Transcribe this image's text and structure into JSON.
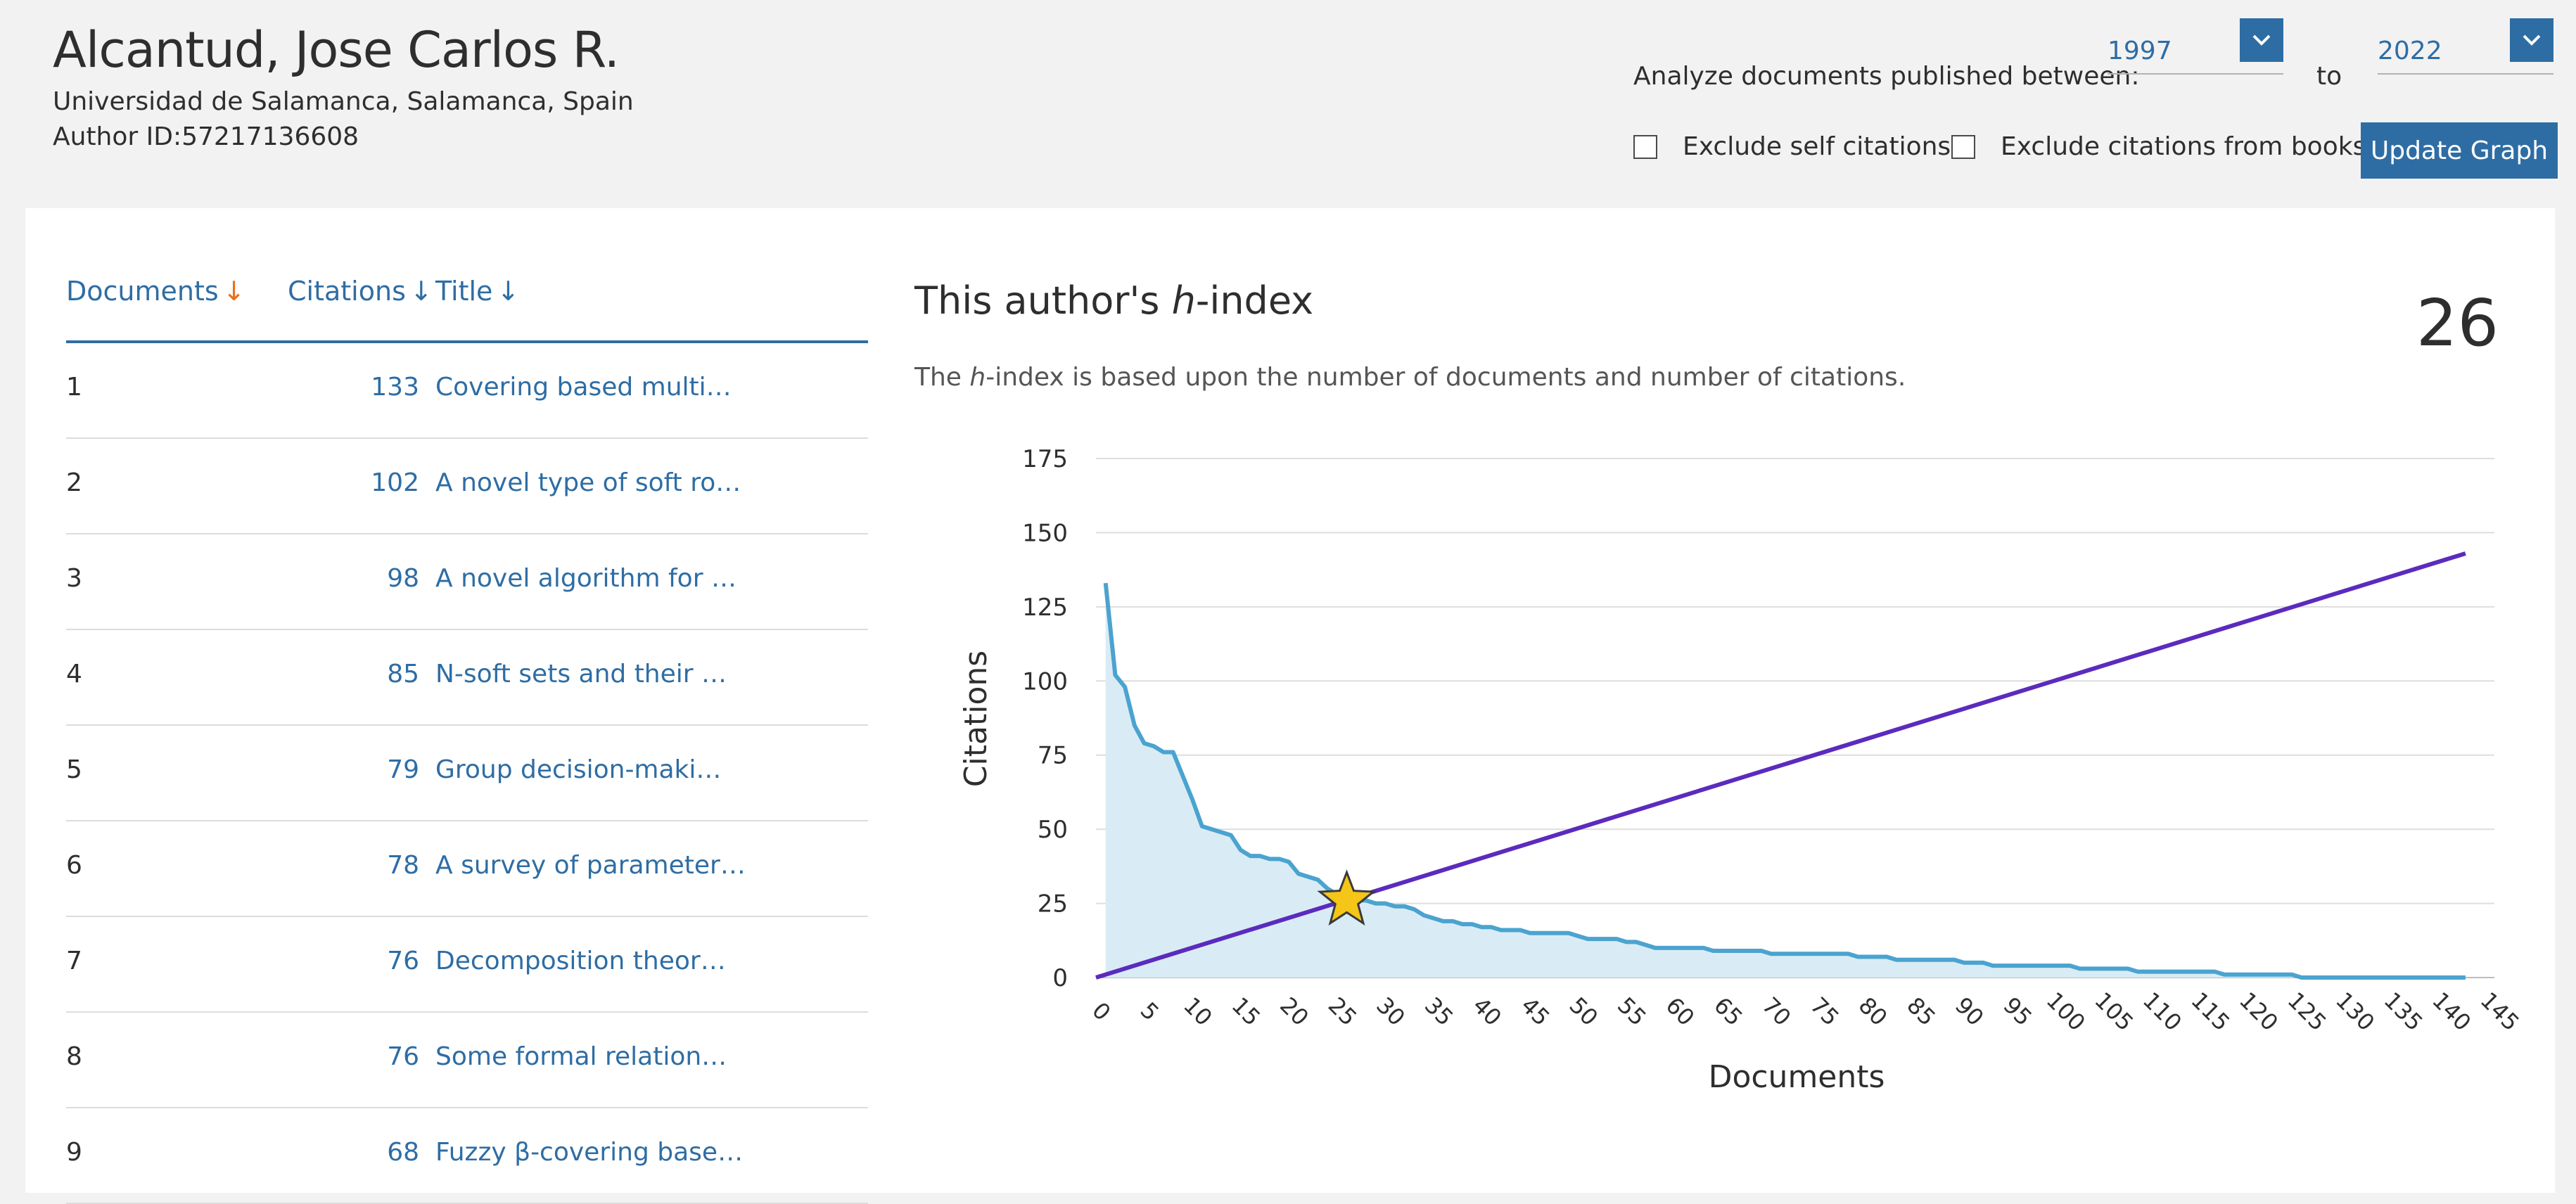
{
  "author": {
    "name": "Alcantud, Jose Carlos R.",
    "affiliation": "Universidad de Salamanca, Salamanca, Spain",
    "author_id_label": "Author ID:",
    "author_id": "57217136608"
  },
  "filters": {
    "analyze_label": "Analyze documents published between:",
    "start_year": "1997",
    "to_label": "to",
    "end_year": "2022",
    "exclude_self_label": "Exclude self citations",
    "exclude_self_checked": false,
    "exclude_books_label": "Exclude citations from books",
    "exclude_books_checked": false,
    "update_button": "Update Graph"
  },
  "table": {
    "columns": [
      "Documents",
      "Citations",
      "Title"
    ],
    "rows": [
      {
        "num": "1",
        "cites": "133",
        "title": "Covering based multi…"
      },
      {
        "num": "2",
        "cites": "102",
        "title": "A novel type of soft ro…"
      },
      {
        "num": "3",
        "cites": "98",
        "title": "A novel algorithm for …"
      },
      {
        "num": "4",
        "cites": "85",
        "title": "N-soft sets and their …"
      },
      {
        "num": "5",
        "cites": "79",
        "title": "Group decision-maki…"
      },
      {
        "num": "6",
        "cites": "78",
        "title": "A survey of parameter…"
      },
      {
        "num": "7",
        "cites": "76",
        "title": "Decomposition theor…"
      },
      {
        "num": "8",
        "cites": "76",
        "title": "Some formal relation…"
      },
      {
        "num": "9",
        "cites": "68",
        "title": "Fuzzy β-covering base…"
      }
    ]
  },
  "hindex": {
    "title_pre": "This author's ",
    "title_h": "h",
    "title_post": "-index",
    "value": "26",
    "desc_pre": "The ",
    "desc_h": "h",
    "desc_post": "-index is based upon the number of documents and number of citations."
  },
  "chart_data": {
    "type": "area",
    "xlabel": "Documents",
    "ylabel": "Citations",
    "xlim": [
      0,
      145
    ],
    "ylim": [
      0,
      175
    ],
    "xticks": [
      0,
      5,
      10,
      15,
      20,
      25,
      30,
      35,
      40,
      45,
      50,
      55,
      60,
      65,
      70,
      75,
      80,
      85,
      90,
      95,
      100,
      105,
      110,
      115,
      120,
      125,
      130,
      135,
      140,
      145
    ],
    "yticks": [
      0,
      25,
      50,
      75,
      100,
      125,
      150,
      175
    ],
    "grid": true,
    "colors": {
      "citations": "#4ba3cf",
      "fill": "#d9ecf5",
      "diagonal": "#5b2bbd",
      "star": "#f5c518"
    },
    "series": [
      {
        "kind": "citations",
        "points": [
          [
            1,
            133
          ],
          [
            2,
            102
          ],
          [
            3,
            98
          ],
          [
            4,
            85
          ],
          [
            5,
            79
          ],
          [
            6,
            78
          ],
          [
            7,
            76
          ],
          [
            8,
            76
          ],
          [
            9,
            68
          ],
          [
            10,
            60
          ],
          [
            11,
            51
          ],
          [
            12,
            50
          ],
          [
            13,
            49
          ],
          [
            14,
            48
          ],
          [
            15,
            43
          ],
          [
            16,
            41
          ],
          [
            17,
            41
          ],
          [
            18,
            40
          ],
          [
            19,
            40
          ],
          [
            20,
            39
          ],
          [
            21,
            35
          ],
          [
            22,
            34
          ],
          [
            23,
            33
          ],
          [
            24,
            30
          ],
          [
            25,
            28
          ],
          [
            26,
            27
          ],
          [
            27,
            26
          ],
          [
            28,
            26
          ],
          [
            29,
            25
          ],
          [
            30,
            25
          ],
          [
            31,
            24
          ],
          [
            32,
            24
          ],
          [
            33,
            23
          ],
          [
            34,
            21
          ],
          [
            35,
            20
          ],
          [
            36,
            19
          ],
          [
            37,
            19
          ],
          [
            38,
            18
          ],
          [
            39,
            18
          ],
          [
            40,
            17
          ],
          [
            41,
            17
          ],
          [
            42,
            16
          ],
          [
            43,
            16
          ],
          [
            44,
            16
          ],
          [
            45,
            15
          ],
          [
            46,
            15
          ],
          [
            47,
            15
          ],
          [
            48,
            15
          ],
          [
            49,
            15
          ],
          [
            50,
            14
          ],
          [
            51,
            13
          ],
          [
            52,
            13
          ],
          [
            53,
            13
          ],
          [
            54,
            13
          ],
          [
            55,
            12
          ],
          [
            56,
            12
          ],
          [
            57,
            11
          ],
          [
            58,
            10
          ],
          [
            59,
            10
          ],
          [
            60,
            10
          ],
          [
            61,
            10
          ],
          [
            62,
            10
          ],
          [
            63,
            10
          ],
          [
            64,
            9
          ],
          [
            65,
            9
          ],
          [
            66,
            9
          ],
          [
            67,
            9
          ],
          [
            68,
            9
          ],
          [
            69,
            9
          ],
          [
            70,
            8
          ],
          [
            71,
            8
          ],
          [
            72,
            8
          ],
          [
            73,
            8
          ],
          [
            74,
            8
          ],
          [
            75,
            8
          ],
          [
            76,
            8
          ],
          [
            77,
            8
          ],
          [
            78,
            8
          ],
          [
            79,
            7
          ],
          [
            80,
            7
          ],
          [
            81,
            7
          ],
          [
            82,
            7
          ],
          [
            83,
            6
          ],
          [
            84,
            6
          ],
          [
            85,
            6
          ],
          [
            86,
            6
          ],
          [
            87,
            6
          ],
          [
            88,
            6
          ],
          [
            89,
            6
          ],
          [
            90,
            5
          ],
          [
            91,
            5
          ],
          [
            92,
            5
          ],
          [
            93,
            4
          ],
          [
            94,
            4
          ],
          [
            95,
            4
          ],
          [
            96,
            4
          ],
          [
            97,
            4
          ],
          [
            98,
            4
          ],
          [
            99,
            4
          ],
          [
            100,
            4
          ],
          [
            101,
            4
          ],
          [
            102,
            3
          ],
          [
            103,
            3
          ],
          [
            104,
            3
          ],
          [
            105,
            3
          ],
          [
            106,
            3
          ],
          [
            107,
            3
          ],
          [
            108,
            2
          ],
          [
            109,
            2
          ],
          [
            110,
            2
          ],
          [
            111,
            2
          ],
          [
            112,
            2
          ],
          [
            113,
            2
          ],
          [
            114,
            2
          ],
          [
            115,
            2
          ],
          [
            116,
            2
          ],
          [
            117,
            1
          ],
          [
            118,
            1
          ],
          [
            119,
            1
          ],
          [
            120,
            1
          ],
          [
            121,
            1
          ],
          [
            122,
            1
          ],
          [
            123,
            1
          ],
          [
            124,
            1
          ],
          [
            125,
            0
          ],
          [
            130,
            0
          ],
          [
            135,
            0
          ],
          [
            140,
            0
          ],
          [
            142,
            0
          ]
        ]
      },
      {
        "kind": "diagonal",
        "points": [
          [
            0,
            0
          ],
          [
            142,
            143
          ]
        ]
      }
    ],
    "marker": {
      "shape": "star",
      "x": 26,
      "y": 26
    }
  }
}
